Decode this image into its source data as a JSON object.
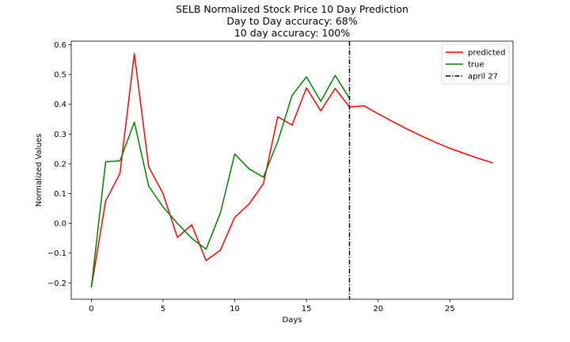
{
  "chart_data": {
    "type": "line",
    "title_lines": [
      "SELB Normalized Stock Price 10 Day Prediction",
      "Day to Day accuracy: 68%",
      "10 day accuracy: 100%"
    ],
    "xlabel": "Days",
    "ylabel": "Normalized Values",
    "xlim": [
      -1.4,
      29.4
    ],
    "ylim": [
      -0.255,
      0.612
    ],
    "xticks": [
      0,
      5,
      10,
      15,
      20,
      25
    ],
    "yticks": [
      -0.2,
      -0.1,
      0.0,
      0.1,
      0.2,
      0.3,
      0.4,
      0.5,
      0.6
    ],
    "ytick_labels": [
      "−0.2",
      "−0.1",
      "0.0",
      "0.1",
      "0.2",
      "0.3",
      "0.4",
      "0.5",
      "0.6"
    ],
    "grid": false,
    "legend_position": "top-right",
    "series": [
      {
        "name": "predicted",
        "color": "#ff0000",
        "style": "solid",
        "x": [
          0,
          1,
          2,
          3,
          4,
          5,
          6,
          7,
          8,
          9,
          10,
          11,
          12,
          13,
          14,
          15,
          16,
          17,
          18,
          19,
          20,
          21,
          22,
          23,
          24,
          25,
          26,
          27,
          28
        ],
        "y": [
          -0.215,
          0.075,
          0.168,
          0.57,
          0.19,
          0.1,
          -0.047,
          -0.005,
          -0.125,
          -0.09,
          0.02,
          0.065,
          0.133,
          0.358,
          0.33,
          0.455,
          0.378,
          0.453,
          0.391,
          0.395,
          0.368,
          0.342,
          0.317,
          0.294,
          0.272,
          0.252,
          0.235,
          0.218,
          0.203
        ]
      },
      {
        "name": "true",
        "color": "#008000",
        "style": "solid",
        "x": [
          0,
          1,
          2,
          3,
          4,
          5,
          6,
          7,
          8,
          9,
          10,
          11,
          12,
          13,
          14,
          15,
          16,
          17,
          18
        ],
        "y": [
          -0.215,
          0.207,
          0.21,
          0.34,
          0.125,
          0.055,
          0.0,
          -0.05,
          -0.087,
          0.035,
          0.233,
          0.183,
          0.155,
          0.275,
          0.43,
          0.492,
          0.41,
          0.497,
          0.42
        ]
      },
      {
        "name": "april 27",
        "color": "#000000",
        "style": "dashdot",
        "vline_x": 18
      }
    ]
  }
}
